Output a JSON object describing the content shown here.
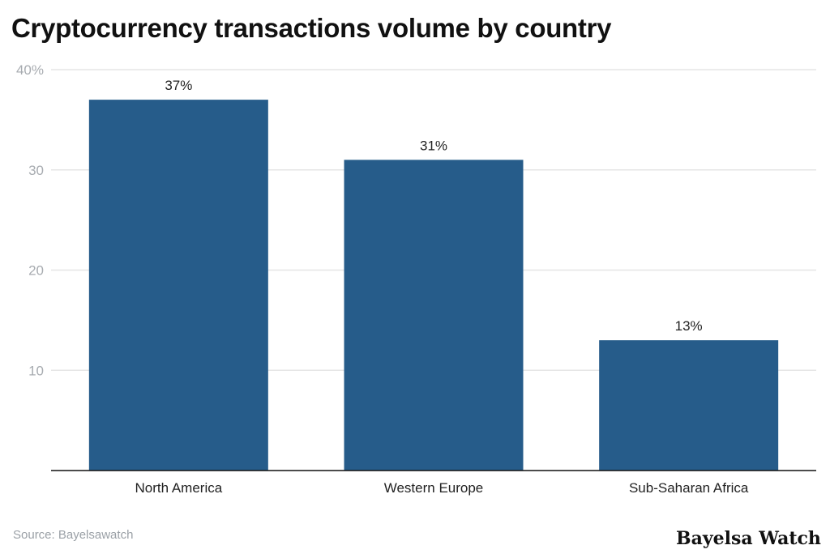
{
  "chart_data": {
    "type": "bar",
    "title": "Cryptocurrency transactions volume by country",
    "categories": [
      "North America",
      "Western Europe",
      "Sub-Saharan Africa"
    ],
    "values": [
      37,
      31,
      13
    ],
    "data_labels": [
      "37%",
      "31%",
      "13%"
    ],
    "yticks": [
      10,
      20,
      30,
      40
    ],
    "ytick_labels": [
      "10",
      "20",
      "30",
      "40%"
    ],
    "ylim": [
      0,
      40
    ],
    "grid": true,
    "xlabel": "",
    "ylabel": "",
    "bar_color": "#265c8a"
  },
  "footer": {
    "source": "Source: Bayelsawatch",
    "brand": "Bayelsa Watch"
  }
}
